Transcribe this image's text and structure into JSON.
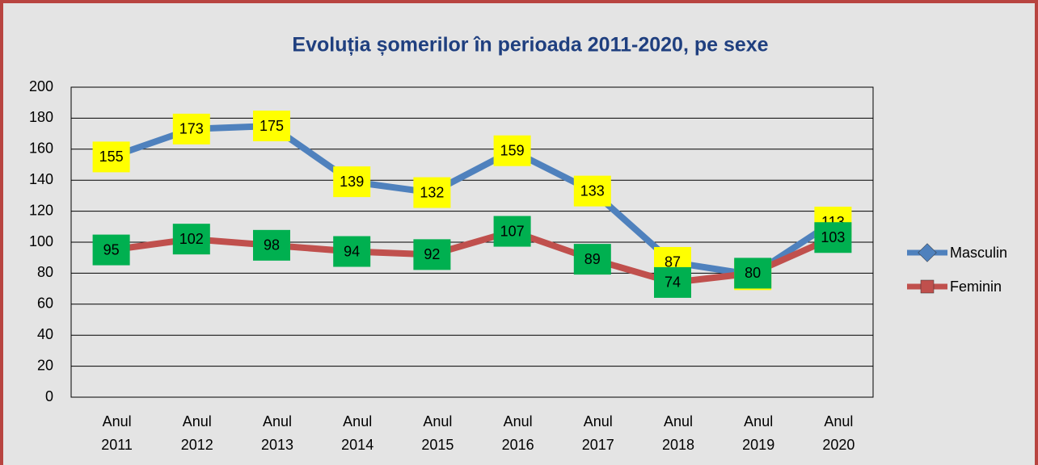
{
  "chart_data": {
    "type": "line",
    "title": "Evoluția șomerilor în perioada 2011-2020, pe sexe",
    "categories": [
      "Anul 2011",
      "Anul 2012",
      "Anul 2013",
      "Anul 2014",
      "Anul 2015",
      "Anul 2016",
      "Anul 2017",
      "Anul 2018",
      "Anul 2019",
      "Anul 2020"
    ],
    "series": [
      {
        "name": "Masculin",
        "color": "#4f81bd",
        "label_color": "#ffff00",
        "values": [
          155,
          173,
          175,
          139,
          132,
          159,
          133,
          87,
          79,
          113
        ]
      },
      {
        "name": "Feminin",
        "color": "#c0504d",
        "label_color": "#00b050",
        "values": [
          95,
          102,
          98,
          94,
          92,
          107,
          89,
          74,
          80,
          103
        ]
      }
    ],
    "ylim": [
      0,
      200
    ],
    "yticks": [
      0,
      20,
      40,
      60,
      80,
      100,
      120,
      140,
      160,
      180,
      200
    ],
    "grid": true,
    "legend": "right"
  }
}
